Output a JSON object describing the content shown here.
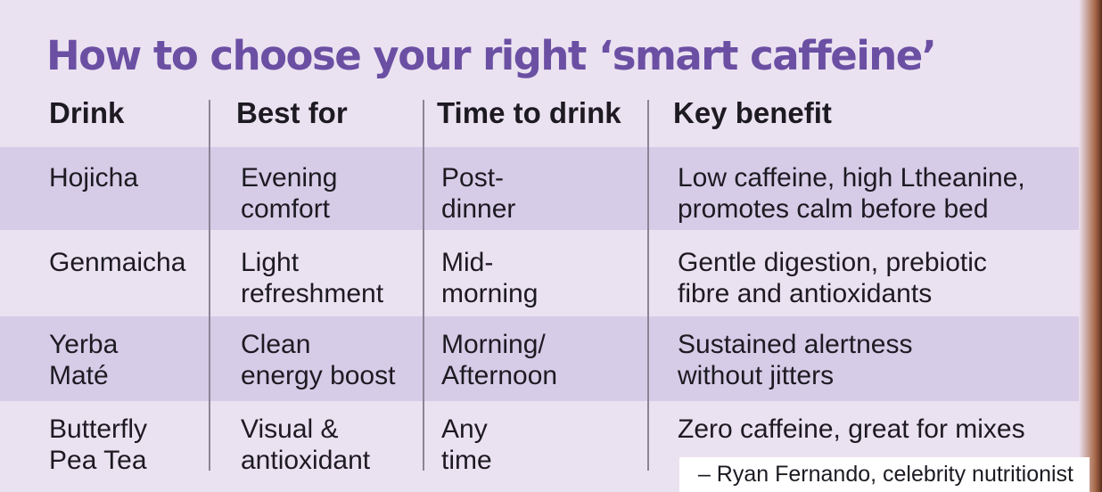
{
  "title": "How to choose your right ‘smart caffeine’",
  "table": {
    "headers": [
      "Drink",
      "Best for",
      "Time to drink",
      "Key benefit"
    ],
    "rows": [
      [
        [
          "Hojicha"
        ],
        [
          "Evening",
          "comfort"
        ],
        [
          "Post-",
          "dinner"
        ],
        [
          "Low caffeine, high Ltheanine,",
          "promotes calm before bed"
        ]
      ],
      [
        [
          "Genmaicha"
        ],
        [
          "Light",
          "refreshment"
        ],
        [
          "Mid-",
          "morning"
        ],
        [
          "Gentle digestion, prebiotic",
          "fibre and antioxidants"
        ]
      ],
      [
        [
          "Yerba",
          "Maté"
        ],
        [
          "Clean",
          "energy boost"
        ],
        [
          "Morning/",
          "Afternoon"
        ],
        [
          "Sustained alertness",
          "without jitters"
        ]
      ],
      [
        [
          "Butterfly",
          "Pea Tea"
        ],
        [
          "Visual &",
          "antioxidant"
        ],
        [
          "Any",
          "time"
        ],
        [
          "Zero caffeine, great for mixes"
        ]
      ]
    ]
  },
  "credit": "– Ryan Fernando, celebrity nutritionist"
}
